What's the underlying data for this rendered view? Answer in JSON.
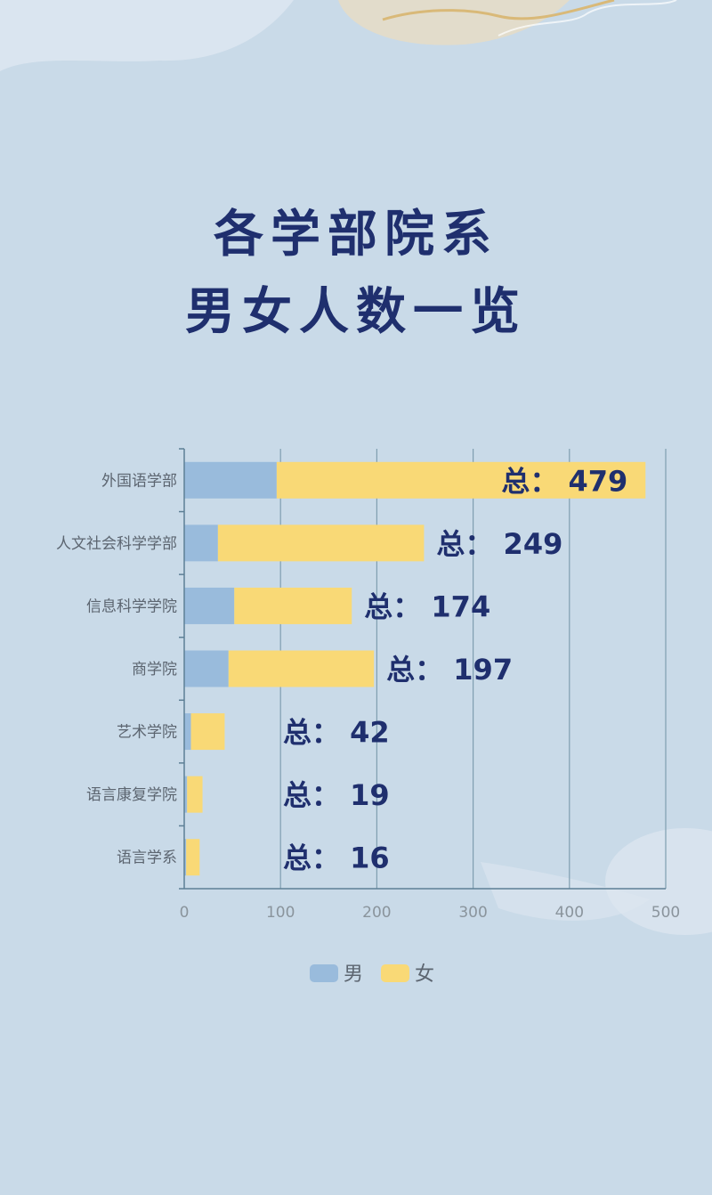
{
  "title_line1": "各学部院系",
  "title_line2": "男女人数一览",
  "chart_data": {
    "type": "bar",
    "orientation": "horizontal",
    "stacked": true,
    "categories": [
      "外国语学部",
      "人文社会科学学部",
      "信息科学学院",
      "商学院",
      "艺术学院",
      "语言康复学院",
      "语言学系"
    ],
    "series": [
      {
        "name": "男",
        "color": "#99bbdc",
        "values": [
          96,
          35,
          52,
          46,
          7,
          3,
          2
        ]
      },
      {
        "name": "女",
        "color": "#f9d976",
        "values": [
          383,
          214,
          122,
          151,
          35,
          16,
          14
        ]
      }
    ],
    "totals": [
      479,
      249,
      174,
      197,
      42,
      19,
      16
    ],
    "total_prefix": "总：",
    "xlim": [
      0,
      500
    ],
    "xticks": [
      0,
      100,
      200,
      300,
      400,
      500
    ],
    "grid": true,
    "legend_position": "bottom"
  }
}
